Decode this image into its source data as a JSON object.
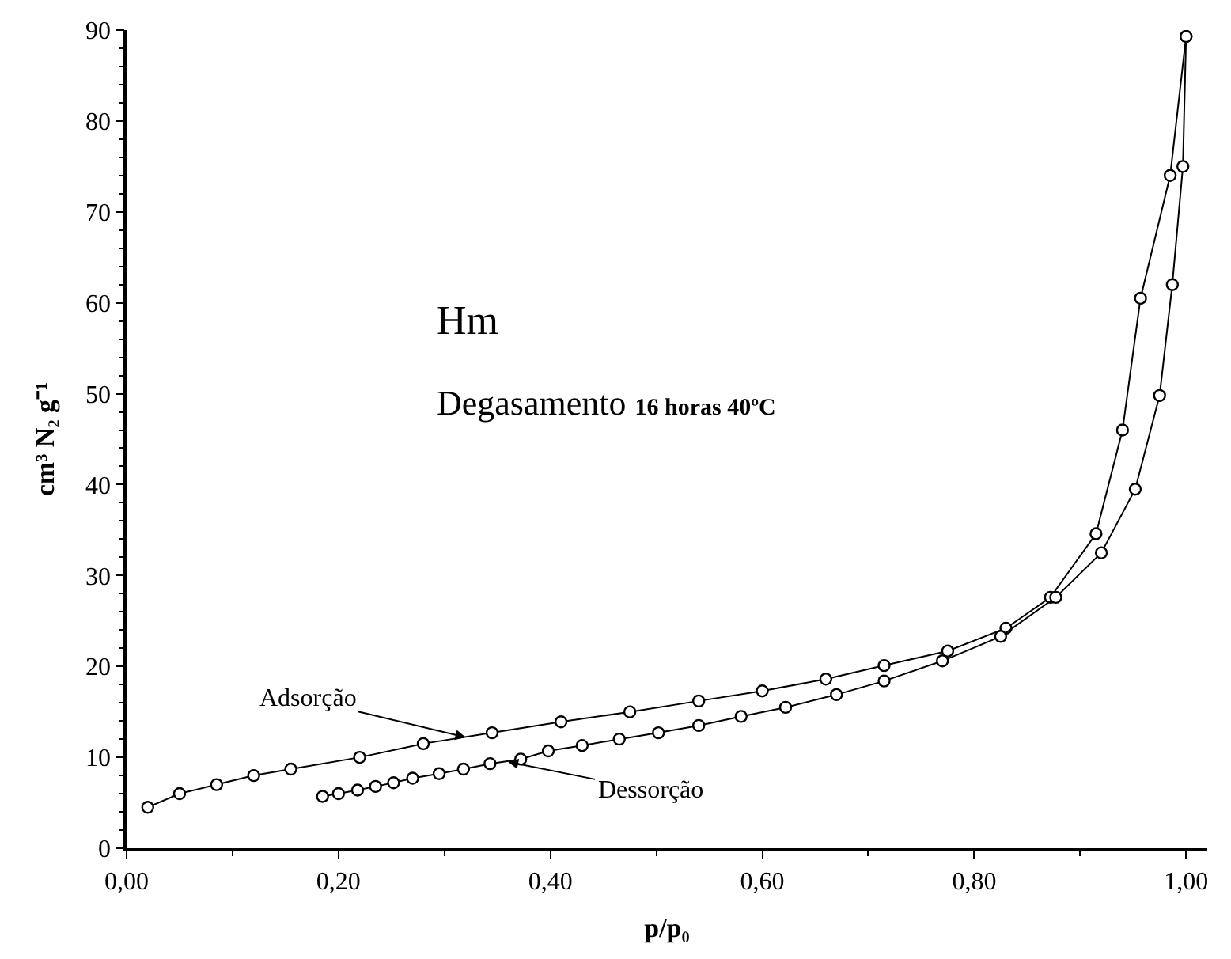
{
  "chart_data": {
    "type": "line",
    "xlabel": "p/p₀",
    "ylabel": "cm³ N₂ g⁻¹",
    "xlim": [
      0,
      1.02
    ],
    "ylim": [
      0,
      90
    ],
    "xticks": [
      {
        "value": 0,
        "label": "0,00"
      },
      {
        "value": 0.2,
        "label": "0,20"
      },
      {
        "value": 0.4,
        "label": "0,40"
      },
      {
        "value": 0.6,
        "label": "0,60"
      },
      {
        "value": 0.8,
        "label": "0,80"
      },
      {
        "value": 1.0,
        "label": "1,00"
      }
    ],
    "yticks": [
      0,
      10,
      20,
      30,
      40,
      50,
      60,
      70,
      80,
      90
    ],
    "legend": false,
    "marker": "circle",
    "line_style": "solid",
    "series": [
      {
        "name": "Adsorção",
        "color": "#000000",
        "x": [
          0.02,
          0.05,
          0.085,
          0.12,
          0.155,
          0.22,
          0.28,
          0.345,
          0.41,
          0.475,
          0.54,
          0.6,
          0.66,
          0.715,
          0.775,
          0.83,
          0.872,
          0.915,
          0.94,
          0.957,
          0.985,
          1.0
        ],
        "values": [
          4.5,
          6,
          7,
          8,
          8.7,
          10,
          11.5,
          12.7,
          13.9,
          15,
          16.2,
          17.3,
          18.6,
          20.1,
          21.7,
          24.2,
          27.6,
          34.6,
          46,
          60.5,
          74,
          89.3
        ]
      },
      {
        "name": "Dessorção",
        "color": "#000000",
        "x": [
          0.185,
          0.2,
          0.218,
          0.235,
          0.252,
          0.27,
          0.295,
          0.318,
          0.343,
          0.372,
          0.398,
          0.43,
          0.465,
          0.502,
          0.54,
          0.58,
          0.622,
          0.67,
          0.715,
          0.77,
          0.825,
          0.877,
          0.92,
          0.952,
          0.975,
          0.987,
          0.997,
          1.0
        ],
        "values": [
          5.7,
          6,
          6.4,
          6.8,
          7.2,
          7.7,
          8.2,
          8.7,
          9.3,
          9.8,
          10.7,
          11.3,
          12,
          12.7,
          13.5,
          14.5,
          15.5,
          16.9,
          18.4,
          20.6,
          23.3,
          27.6,
          32.5,
          39.5,
          49.8,
          62,
          75,
          89.3
        ]
      }
    ],
    "annotations": [
      "Hm",
      "Degasamento",
      "16 horas 40ºC"
    ]
  }
}
